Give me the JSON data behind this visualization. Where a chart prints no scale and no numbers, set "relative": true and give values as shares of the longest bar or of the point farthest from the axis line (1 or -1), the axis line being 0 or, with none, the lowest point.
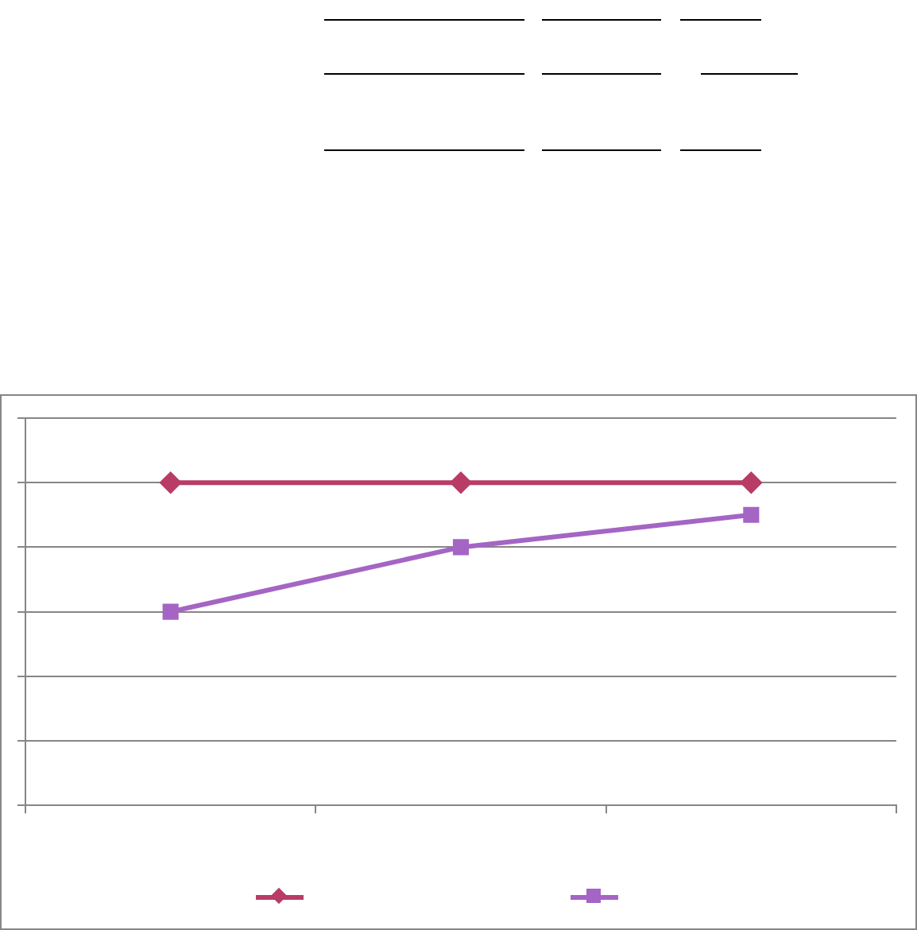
{
  "chart_data": {
    "type": "line",
    "relative": true,
    "categories": [
      null,
      null,
      null
    ],
    "series": [
      {
        "color": "#b83c66",
        "values": [
          1,
          1,
          1
        ],
        "marker": "diamond"
      },
      {
        "color": "#a465c4",
        "values": [
          0.6,
          0.8,
          0.9
        ],
        "marker": "square"
      }
    ],
    "grid": "y",
    "line_style": "solid"
  }
}
